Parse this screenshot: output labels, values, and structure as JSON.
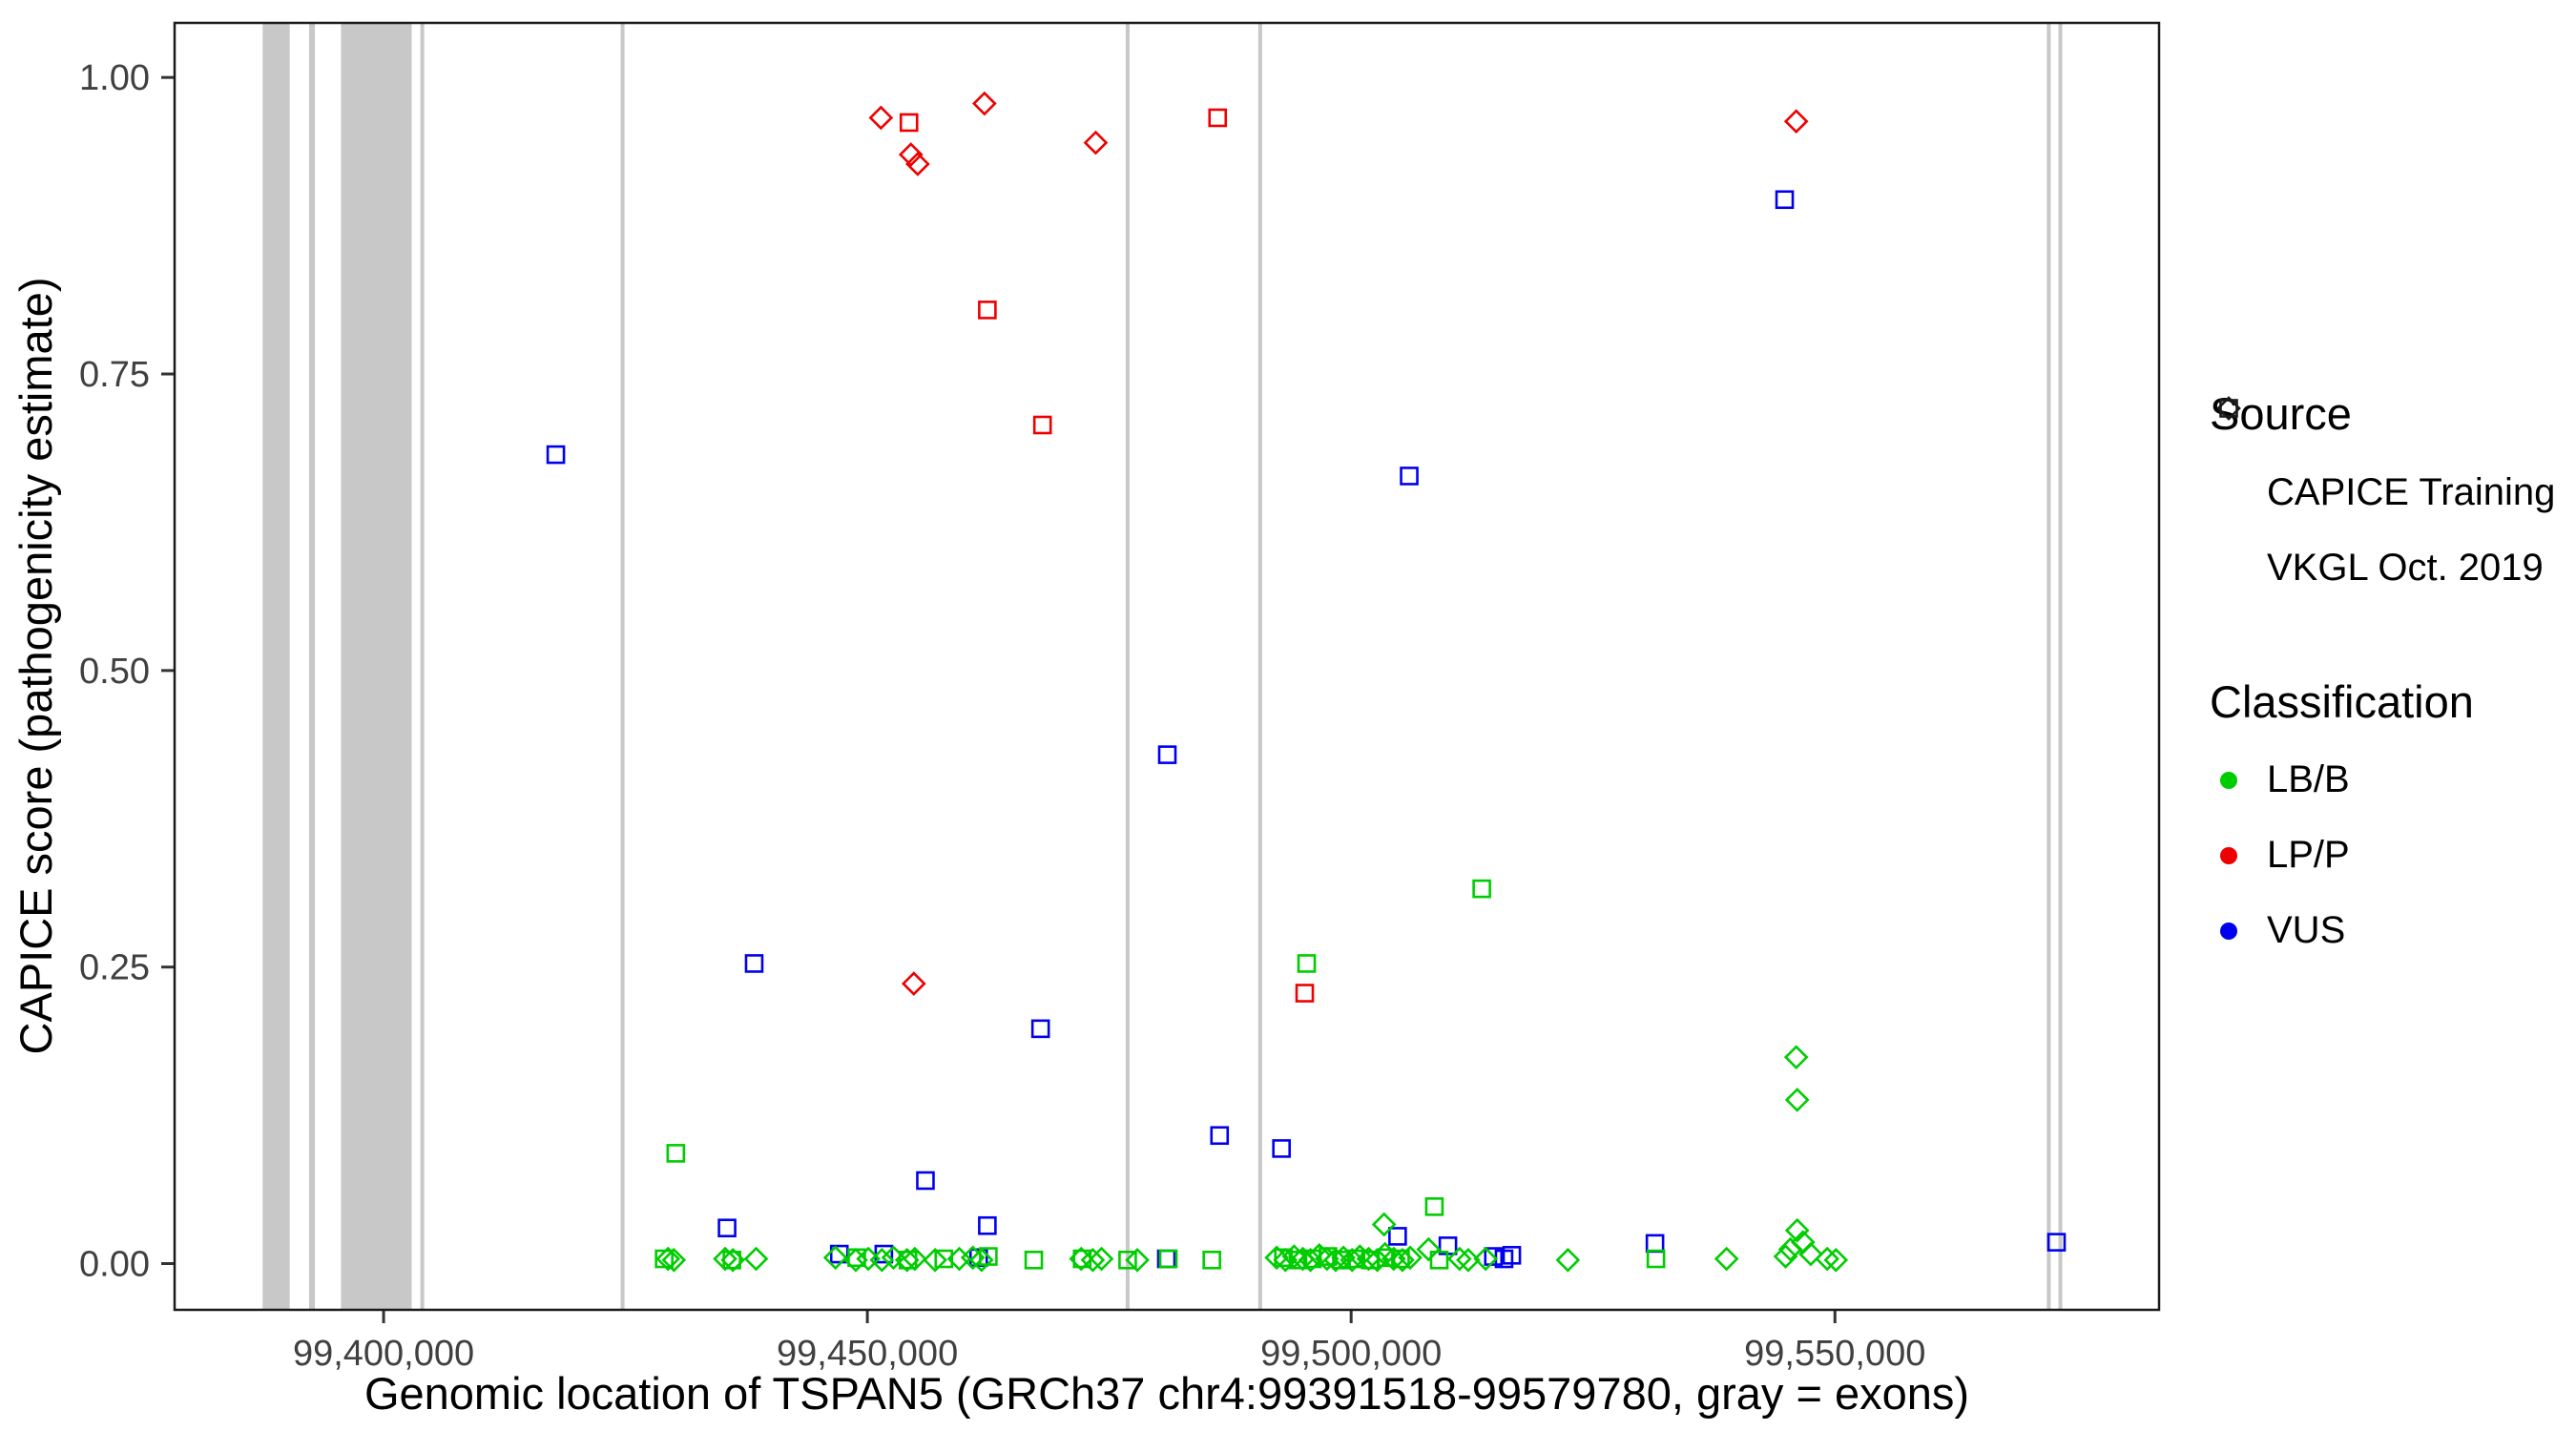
{
  "chart_data": {
    "type": "scatter",
    "title": "",
    "xlabel": "Genomic location of TSPAN5 (GRCh37 chr4:99391518-99579780, gray = exons)",
    "ylabel": "CAPICE score (pathogenicity estimate)",
    "xlim": [
      99378400,
      99583500
    ],
    "ylim": [
      -0.039,
      1.046
    ],
    "grid": "off",
    "legend_position": "right",
    "exon_color": "#c8c8c8",
    "x_ticks": [
      {
        "value": 99400000,
        "label": "99,400,000"
      },
      {
        "value": 99450000,
        "label": "99,450,000"
      },
      {
        "value": 99500000,
        "label": "99,500,000"
      },
      {
        "value": 99550000,
        "label": "99,550,000"
      }
    ],
    "y_ticks": [
      {
        "value": 0.0,
        "label": "0.00"
      },
      {
        "value": 0.25,
        "label": "0.25"
      },
      {
        "value": 0.5,
        "label": "0.50"
      },
      {
        "value": 0.75,
        "label": "0.75"
      },
      {
        "value": 1.0,
        "label": "1.00"
      }
    ],
    "exons": [
      [
        99387500,
        99390300
      ],
      [
        99392300,
        99392900
      ],
      [
        99395600,
        99402900
      ],
      [
        99403800,
        99404200
      ],
      [
        99424500,
        99424900
      ],
      [
        99476700,
        99477100
      ],
      [
        99490400,
        99490800
      ],
      [
        99571900,
        99572300
      ],
      [
        99573100,
        99573500
      ]
    ],
    "series": [
      {
        "id": "training-lpp",
        "source": "CAPICE Training",
        "classification": "LP/P",
        "marker": "diamond",
        "color": "#EE0000",
        "points": [
          [
            99451400,
            0.966
          ],
          [
            99454500,
            0.935
          ],
          [
            99455200,
            0.927
          ],
          [
            99462100,
            0.978
          ],
          [
            99473600,
            0.945
          ],
          [
            99454800,
            0.236
          ],
          [
            99546000,
            0.963
          ]
        ]
      },
      {
        "id": "vkgl-lpp",
        "source": "VKGL Oct. 2019",
        "classification": "LP/P",
        "marker": "square",
        "color": "#EE0000",
        "points": [
          [
            99454300,
            0.962
          ],
          [
            99462400,
            0.804
          ],
          [
            99468100,
            0.707
          ],
          [
            99486200,
            0.966
          ],
          [
            99495200,
            0.228
          ]
        ]
      },
      {
        "id": "vkgl-vus",
        "source": "VKGL Oct. 2019",
        "classification": "VUS",
        "marker": "square",
        "color": "#0000EE",
        "points": [
          [
            99417800,
            0.682
          ],
          [
            99438300,
            0.253
          ],
          [
            99435500,
            0.03
          ],
          [
            99456000,
            0.07
          ],
          [
            99462400,
            0.032
          ],
          [
            99467900,
            0.198
          ],
          [
            99481000,
            0.429
          ],
          [
            99486400,
            0.108
          ],
          [
            99492800,
            0.097
          ],
          [
            99506000,
            0.664
          ],
          [
            99504800,
            0.023
          ],
          [
            99531400,
            0.017
          ],
          [
            99544800,
            0.897
          ],
          [
            99572900,
            0.018
          ],
          [
            99447100,
            0.008
          ],
          [
            99451700,
            0.008
          ],
          [
            99510000,
            0.015
          ],
          [
            99514700,
            0.006
          ],
          [
            99515800,
            0.004
          ],
          [
            99516600,
            0.007
          ],
          [
            99461500,
            0.005
          ],
          [
            99480900,
            0.004
          ]
        ]
      },
      {
        "id": "training-lbb",
        "source": "CAPICE Training",
        "classification": "LB/B",
        "marker": "diamond",
        "color": "#00CD00",
        "points": [
          [
            99546000,
            0.174
          ],
          [
            99546100,
            0.138
          ],
          [
            99503400,
            0.033
          ],
          [
            99429400,
            0.004
          ],
          [
            99430000,
            0.003
          ],
          [
            99435300,
            0.004
          ],
          [
            99436100,
            0.003
          ],
          [
            99438500,
            0.004
          ],
          [
            99446700,
            0.005
          ],
          [
            99448800,
            0.003
          ],
          [
            99450100,
            0.004
          ],
          [
            99451500,
            0.003
          ],
          [
            99452700,
            0.005
          ],
          [
            99454100,
            0.003
          ],
          [
            99454900,
            0.004
          ],
          [
            99457000,
            0.003
          ],
          [
            99459500,
            0.004
          ],
          [
            99460900,
            0.005
          ],
          [
            99461800,
            0.003
          ],
          [
            99472100,
            0.004
          ],
          [
            99473300,
            0.003
          ],
          [
            99474200,
            0.004
          ],
          [
            99477900,
            0.003
          ],
          [
            99492300,
            0.005
          ],
          [
            99493200,
            0.003
          ],
          [
            99494100,
            0.006
          ],
          [
            99495000,
            0.004
          ],
          [
            99495800,
            0.003
          ],
          [
            99496700,
            0.007
          ],
          [
            99497500,
            0.004
          ],
          [
            99498400,
            0.003
          ],
          [
            99499200,
            0.005
          ],
          [
            99500100,
            0.003
          ],
          [
            99500900,
            0.006
          ],
          [
            99501800,
            0.004
          ],
          [
            99502700,
            0.003
          ],
          [
            99503500,
            0.008
          ],
          [
            99504400,
            0.004
          ],
          [
            99505300,
            0.003
          ],
          [
            99506100,
            0.005
          ],
          [
            99508000,
            0.012
          ],
          [
            99511200,
            0.004
          ],
          [
            99512100,
            0.003
          ],
          [
            99513900,
            0.004
          ],
          [
            99522400,
            0.003
          ],
          [
            99538800,
            0.004
          ],
          [
            99544900,
            0.006
          ],
          [
            99545400,
            0.012
          ],
          [
            99546100,
            0.028
          ],
          [
            99546700,
            0.018
          ],
          [
            99547500,
            0.008
          ],
          [
            99549200,
            0.004
          ],
          [
            99550100,
            0.003
          ]
        ]
      },
      {
        "id": "vkgl-lbb",
        "source": "VKGL Oct. 2019",
        "classification": "LB/B",
        "marker": "square",
        "color": "#00CD00",
        "points": [
          [
            99430200,
            0.093
          ],
          [
            99495400,
            0.253
          ],
          [
            99513500,
            0.316
          ],
          [
            99508600,
            0.048
          ],
          [
            99429000,
            0.004
          ],
          [
            99436000,
            0.003
          ],
          [
            99448900,
            0.005
          ],
          [
            99454200,
            0.003
          ],
          [
            99457900,
            0.004
          ],
          [
            99462500,
            0.006
          ],
          [
            99467200,
            0.003
          ],
          [
            99472200,
            0.004
          ],
          [
            99476900,
            0.003
          ],
          [
            99481100,
            0.004
          ],
          [
            99485600,
            0.003
          ],
          [
            99493000,
            0.005
          ],
          [
            99494500,
            0.003
          ],
          [
            99496000,
            0.004
          ],
          [
            99497600,
            0.006
          ],
          [
            99499000,
            0.003
          ],
          [
            99500500,
            0.004
          ],
          [
            99502000,
            0.003
          ],
          [
            99503600,
            0.005
          ],
          [
            99505100,
            0.004
          ],
          [
            99509100,
            0.003
          ],
          [
            99531500,
            0.004
          ]
        ]
      }
    ]
  },
  "legend": {
    "source_title": "Source",
    "source_items": [
      {
        "label": "CAPICE Training",
        "marker": "diamond"
      },
      {
        "label": "VKGL Oct. 2019",
        "marker": "square"
      }
    ],
    "classification_title": "Classification",
    "classification_items": [
      {
        "label": "LB/B",
        "color": "#00CD00"
      },
      {
        "label": "LP/P",
        "color": "#EE0000"
      },
      {
        "label": "VUS",
        "color": "#0000EE"
      }
    ]
  }
}
